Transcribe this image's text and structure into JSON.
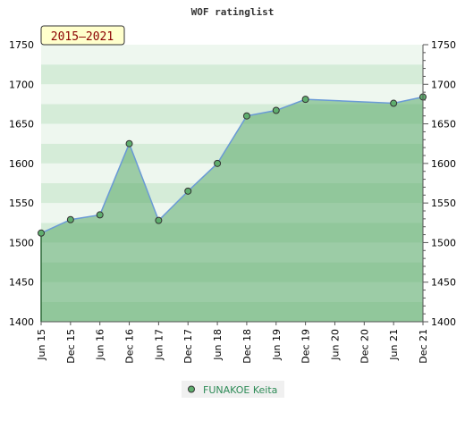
{
  "chart_data": {
    "type": "line",
    "title": "WOF ratinglist",
    "period_label": "2015–2021",
    "x_tick_labels": [
      "Jun 15",
      "Dec 15",
      "Jun 16",
      "Dec 16",
      "Jun 17",
      "Dec 17",
      "Jun 18",
      "Dec 18",
      "Jun 19",
      "Dec 19",
      "Jun 20",
      "Dec 20",
      "Jun 21",
      "Dec 21"
    ],
    "y_tick_labels": [
      "1400",
      "1450",
      "1500",
      "1550",
      "1600",
      "1650",
      "1700",
      "1750"
    ],
    "ylim": [
      1400,
      1750
    ],
    "grid": "horizontal bands",
    "legend_position": "bottom-center",
    "series": [
      {
        "name": "FUNAKOE Keita",
        "x": [
          "Jun 15",
          "Dec 15",
          "Jun 16",
          "Dec 16",
          "Jun 17",
          "Dec 17",
          "Jun 18",
          "Dec 18",
          "Jun 19",
          "Dec 19",
          "Jun 21",
          "Dec 21"
        ],
        "values": [
          1512,
          1529,
          1535,
          1625,
          1528,
          1565,
          1600,
          1660,
          1667,
          1681,
          1676,
          1684
        ]
      }
    ]
  },
  "colors": {
    "line": "#6a9ad6",
    "marker": "#5fae6e",
    "area": "#5aaa6a",
    "band_light": "#eef7ef",
    "band_mid": "#d5ecd8",
    "badge_fill": "#ffffcc"
  }
}
